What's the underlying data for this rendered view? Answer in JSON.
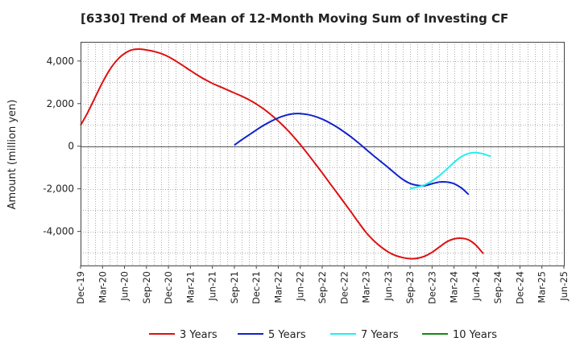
{
  "chart_data": {
    "type": "line",
    "title": "[6330]  Trend of Mean of 12-Month Moving Sum of Investing CF",
    "xlabel": "",
    "ylabel": "Amount (million yen)",
    "ylim": [
      -5600,
      4900
    ],
    "yticks": [
      -4000,
      -2000,
      0,
      2000,
      4000
    ],
    "ytick_labels": [
      "-4,000",
      "-2,000",
      "0",
      "2,000",
      "4,000"
    ],
    "x_range_months": [
      0,
      66
    ],
    "x_ticks": [
      {
        "m": 0,
        "label": "Dec-19"
      },
      {
        "m": 3,
        "label": "Mar-20"
      },
      {
        "m": 6,
        "label": "Jun-20"
      },
      {
        "m": 9,
        "label": "Sep-20"
      },
      {
        "m": 12,
        "label": "Dec-20"
      },
      {
        "m": 15,
        "label": "Mar-21"
      },
      {
        "m": 18,
        "label": "Jun-21"
      },
      {
        "m": 21,
        "label": "Sep-21"
      },
      {
        "m": 24,
        "label": "Dec-21"
      },
      {
        "m": 27,
        "label": "Mar-22"
      },
      {
        "m": 30,
        "label": "Jun-22"
      },
      {
        "m": 33,
        "label": "Sep-22"
      },
      {
        "m": 36,
        "label": "Dec-22"
      },
      {
        "m": 39,
        "label": "Mar-23"
      },
      {
        "m": 42,
        "label": "Jun-23"
      },
      {
        "m": 45,
        "label": "Sep-23"
      },
      {
        "m": 48,
        "label": "Dec-23"
      },
      {
        "m": 51,
        "label": "Mar-24"
      },
      {
        "m": 54,
        "label": "Jun-24"
      },
      {
        "m": 57,
        "label": "Sep-24"
      },
      {
        "m": 60,
        "label": "Dec-24"
      },
      {
        "m": 63,
        "label": "Mar-25"
      },
      {
        "m": 66,
        "label": "Jun-25"
      }
    ],
    "grid": true,
    "legend_position": "bottom",
    "series": [
      {
        "name": "3 Years",
        "color": "#dd1111",
        "points": [
          [
            0,
            980
          ],
          [
            1,
            1600
          ],
          [
            2,
            2300
          ],
          [
            3,
            3000
          ],
          [
            4,
            3600
          ],
          [
            5,
            4050
          ],
          [
            6,
            4350
          ],
          [
            7,
            4520
          ],
          [
            8,
            4560
          ],
          [
            9,
            4520
          ],
          [
            10,
            4450
          ],
          [
            11,
            4350
          ],
          [
            12,
            4200
          ],
          [
            13,
            4000
          ],
          [
            14,
            3780
          ],
          [
            15,
            3550
          ],
          [
            16,
            3330
          ],
          [
            17,
            3130
          ],
          [
            18,
            2950
          ],
          [
            19,
            2800
          ],
          [
            20,
            2650
          ],
          [
            21,
            2500
          ],
          [
            22,
            2350
          ],
          [
            23,
            2180
          ],
          [
            24,
            1980
          ],
          [
            25,
            1750
          ],
          [
            26,
            1480
          ],
          [
            27,
            1180
          ],
          [
            28,
            850
          ],
          [
            29,
            480
          ],
          [
            30,
            80
          ],
          [
            31,
            -350
          ],
          [
            32,
            -800
          ],
          [
            33,
            -1250
          ],
          [
            34,
            -1720
          ],
          [
            35,
            -2180
          ],
          [
            36,
            -2650
          ],
          [
            37,
            -3120
          ],
          [
            38,
            -3600
          ],
          [
            39,
            -4050
          ],
          [
            40,
            -4420
          ],
          [
            41,
            -4720
          ],
          [
            42,
            -4960
          ],
          [
            43,
            -5130
          ],
          [
            44,
            -5230
          ],
          [
            45,
            -5280
          ],
          [
            46,
            -5260
          ],
          [
            47,
            -5160
          ],
          [
            48,
            -4980
          ],
          [
            49,
            -4730
          ],
          [
            50,
            -4490
          ],
          [
            51,
            -4350
          ],
          [
            52,
            -4320
          ],
          [
            53,
            -4400
          ],
          [
            54,
            -4650
          ],
          [
            55,
            -5050
          ]
        ]
      },
      {
        "name": "5 Years",
        "color": "#1122cc",
        "points": [
          [
            21,
            50
          ],
          [
            22,
            300
          ],
          [
            23,
            530
          ],
          [
            24,
            760
          ],
          [
            25,
            980
          ],
          [
            26,
            1170
          ],
          [
            27,
            1330
          ],
          [
            28,
            1450
          ],
          [
            29,
            1520
          ],
          [
            30,
            1530
          ],
          [
            31,
            1490
          ],
          [
            32,
            1400
          ],
          [
            33,
            1270
          ],
          [
            34,
            1100
          ],
          [
            35,
            900
          ],
          [
            36,
            670
          ],
          [
            37,
            420
          ],
          [
            38,
            140
          ],
          [
            39,
            -150
          ],
          [
            40,
            -440
          ],
          [
            41,
            -720
          ],
          [
            42,
            -1000
          ],
          [
            43,
            -1290
          ],
          [
            44,
            -1560
          ],
          [
            45,
            -1750
          ],
          [
            46,
            -1840
          ],
          [
            47,
            -1850
          ],
          [
            48,
            -1760
          ],
          [
            49,
            -1680
          ],
          [
            50,
            -1680
          ],
          [
            51,
            -1760
          ],
          [
            52,
            -1960
          ],
          [
            53,
            -2270
          ]
        ]
      },
      {
        "name": "7 Years",
        "color": "#22eeee",
        "points": [
          [
            45,
            -1980
          ],
          [
            46,
            -1920
          ],
          [
            47,
            -1810
          ],
          [
            48,
            -1630
          ],
          [
            49,
            -1380
          ],
          [
            50,
            -1080
          ],
          [
            51,
            -760
          ],
          [
            52,
            -490
          ],
          [
            53,
            -340
          ],
          [
            54,
            -300
          ],
          [
            55,
            -360
          ],
          [
            56,
            -480
          ]
        ]
      },
      {
        "name": "10 Years",
        "color": "#118811",
        "points": []
      }
    ]
  }
}
